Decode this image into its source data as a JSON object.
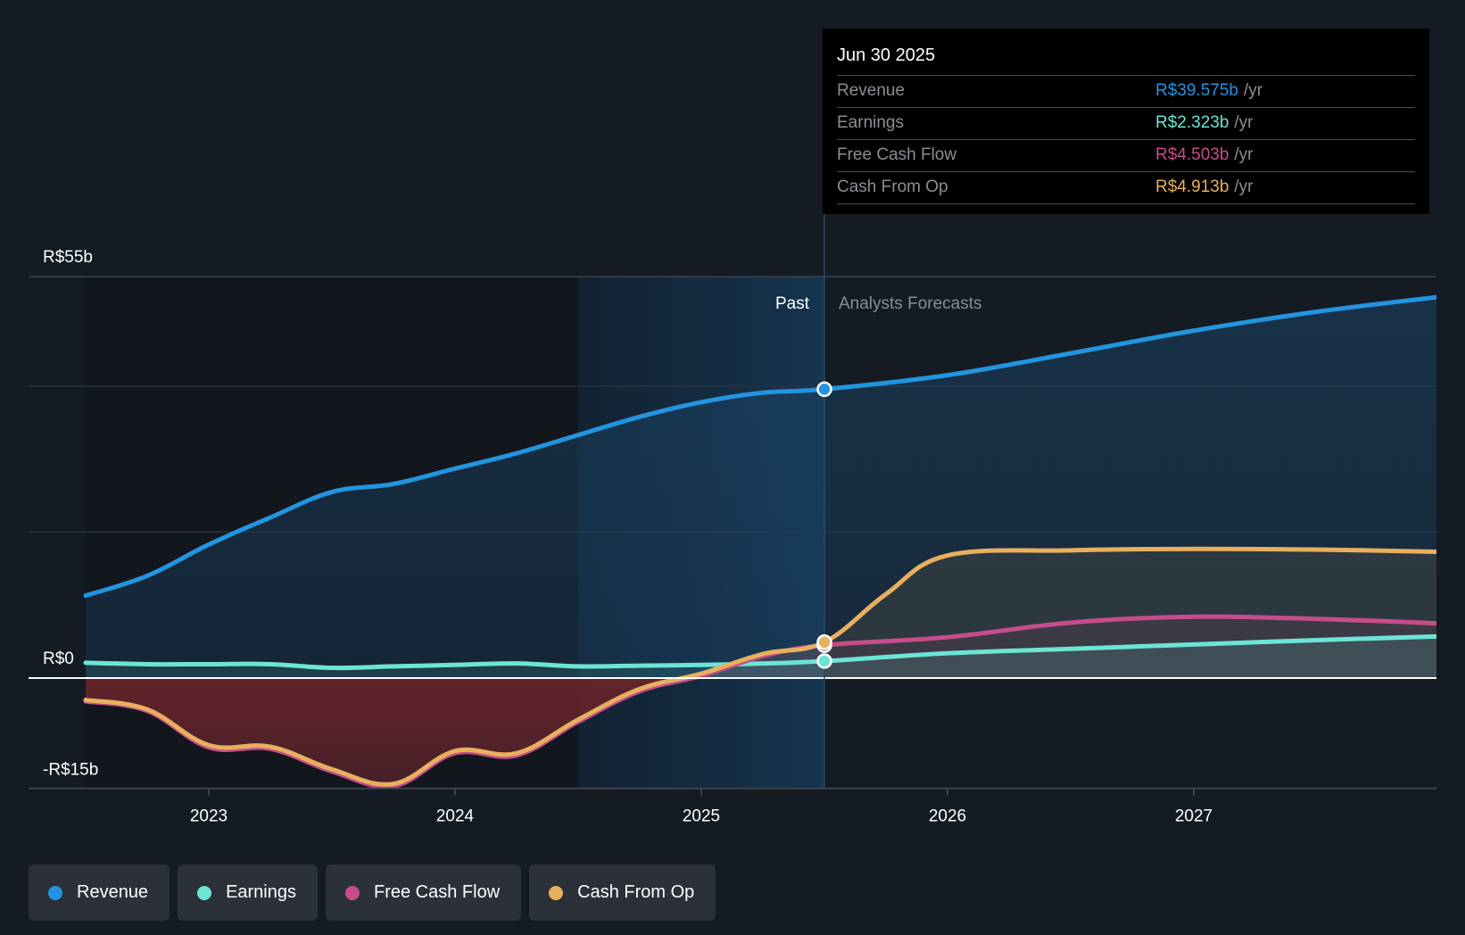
{
  "tooltip": {
    "date": "Jun 30 2025",
    "unit": "/yr",
    "rows": [
      {
        "name": "Revenue",
        "value": "R$39.575b",
        "color": "#2394df"
      },
      {
        "name": "Earnings",
        "value": "R$2.323b",
        "color": "#6ce5d4"
      },
      {
        "name": "Free Cash Flow",
        "value": "R$4.503b",
        "color": "#c64d8a"
      },
      {
        "name": "Cash From Op",
        "value": "R$4.913b",
        "color": "#e8b05e"
      }
    ]
  },
  "regions": {
    "past_label": "Past",
    "forecast_label": "Analysts Forecasts"
  },
  "legend": [
    {
      "label": "Revenue",
      "color": "#2394df"
    },
    {
      "label": "Earnings",
      "color": "#6ce5d4"
    },
    {
      "label": "Free Cash Flow",
      "color": "#c64d8a"
    },
    {
      "label": "Cash From Op",
      "color": "#e8b05e"
    }
  ],
  "chart_data": {
    "type": "area",
    "title": "",
    "xlabel": "",
    "ylabel": "",
    "y_unit": "R$ billions",
    "ylim": [
      -15,
      55
    ],
    "yticks": [
      {
        "value": 55,
        "label": "R$55b"
      },
      {
        "value": 0,
        "label": "R$0"
      },
      {
        "value": -15,
        "label": "-R$15b"
      }
    ],
    "y_gridlines": [
      55,
      40,
      20,
      0
    ],
    "xlim": [
      2022.5,
      2027.99
    ],
    "xticks": [
      {
        "value": 2023,
        "label": "2023"
      },
      {
        "value": 2024,
        "label": "2024"
      },
      {
        "value": 2025,
        "label": "2025"
      },
      {
        "value": 2026,
        "label": "2026"
      },
      {
        "value": 2027,
        "label": "2027"
      }
    ],
    "past_shade_start": 2024.5,
    "divider_x": 2025.5,
    "legend_position": "bottom-left",
    "grid": true,
    "series": [
      {
        "name": "Revenue",
        "color": "#2394df",
        "points": [
          [
            2022.5,
            11.3
          ],
          [
            2022.75,
            14.0
          ],
          [
            2023.0,
            18.3
          ],
          [
            2023.25,
            22.0
          ],
          [
            2023.5,
            25.5
          ],
          [
            2023.75,
            26.6
          ],
          [
            2024.0,
            28.7
          ],
          [
            2024.25,
            30.8
          ],
          [
            2024.5,
            33.3
          ],
          [
            2024.75,
            35.8
          ],
          [
            2025.0,
            37.8
          ],
          [
            2025.25,
            39.1
          ],
          [
            2025.5,
            39.575
          ],
          [
            2026.0,
            41.5
          ],
          [
            2026.5,
            44.5
          ],
          [
            2027.0,
            47.6
          ],
          [
            2027.5,
            50.2
          ],
          [
            2027.99,
            52.2
          ]
        ]
      },
      {
        "name": "Earnings",
        "color": "#6ce5d4",
        "points": [
          [
            2022.5,
            2.1
          ],
          [
            2022.75,
            1.9
          ],
          [
            2023.0,
            1.9
          ],
          [
            2023.25,
            1.9
          ],
          [
            2023.5,
            1.4
          ],
          [
            2023.75,
            1.6
          ],
          [
            2024.0,
            1.8
          ],
          [
            2024.25,
            2.0
          ],
          [
            2024.5,
            1.6
          ],
          [
            2024.75,
            1.7
          ],
          [
            2025.0,
            1.8
          ],
          [
            2025.25,
            2.0
          ],
          [
            2025.5,
            2.323
          ],
          [
            2026.0,
            3.4
          ],
          [
            2026.5,
            4.0
          ],
          [
            2027.0,
            4.6
          ],
          [
            2027.5,
            5.2
          ],
          [
            2027.99,
            5.7
          ]
        ]
      },
      {
        "name": "Free Cash Flow",
        "color": "#c64d8a",
        "points": [
          [
            2022.5,
            -3.2
          ],
          [
            2022.75,
            -4.5
          ],
          [
            2023.0,
            -9.5
          ],
          [
            2023.25,
            -9.7
          ],
          [
            2023.5,
            -12.8
          ],
          [
            2023.75,
            -14.8
          ],
          [
            2024.0,
            -10.3
          ],
          [
            2024.25,
            -10.6
          ],
          [
            2024.5,
            -6.0
          ],
          [
            2024.75,
            -1.8
          ],
          [
            2025.0,
            0.3
          ],
          [
            2025.25,
            3.0
          ],
          [
            2025.5,
            4.503
          ],
          [
            2026.0,
            5.6
          ],
          [
            2026.5,
            7.6
          ],
          [
            2027.0,
            8.4
          ],
          [
            2027.5,
            8.1
          ],
          [
            2027.99,
            7.5
          ]
        ]
      },
      {
        "name": "Cash From Op",
        "color": "#e8b05e",
        "points": [
          [
            2022.5,
            -3.0
          ],
          [
            2022.75,
            -4.3
          ],
          [
            2023.0,
            -9.2
          ],
          [
            2023.25,
            -9.4
          ],
          [
            2023.5,
            -12.5
          ],
          [
            2023.75,
            -14.5
          ],
          [
            2024.0,
            -10.0
          ],
          [
            2024.25,
            -10.3
          ],
          [
            2024.5,
            -5.7
          ],
          [
            2024.75,
            -1.5
          ],
          [
            2025.0,
            0.6
          ],
          [
            2025.25,
            3.3
          ],
          [
            2025.5,
            4.913
          ],
          [
            2025.75,
            11.5
          ],
          [
            2026.0,
            16.8
          ],
          [
            2026.5,
            17.5
          ],
          [
            2027.0,
            17.7
          ],
          [
            2027.5,
            17.6
          ],
          [
            2027.99,
            17.3
          ]
        ]
      }
    ]
  }
}
